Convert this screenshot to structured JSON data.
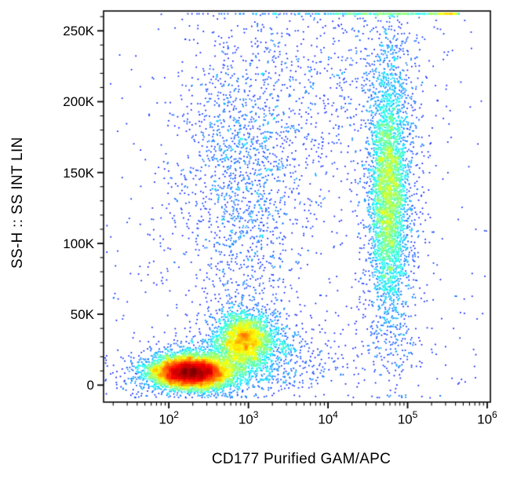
{
  "chart_data": {
    "type": "scatter",
    "subtype": "flow-cytometry-density-dot-plot",
    "title": "",
    "xlabel": "CD177 Purified GAM/APC",
    "ylabel": "SS-H :: SS INT LIN",
    "x_scale": "log10",
    "y_scale": "linear",
    "x_log_range": [
      1.18,
      6.04
    ],
    "y_range": [
      -12000,
      264000
    ],
    "saturation_y": 262000,
    "x_ticks": [
      2,
      3,
      4,
      5,
      6
    ],
    "y_ticks": [
      {
        "value": 0,
        "label": "0"
      },
      {
        "value": 50000,
        "label": "50K"
      },
      {
        "value": 100000,
        "label": "100K"
      },
      {
        "value": 150000,
        "label": "150K"
      },
      {
        "value": 200000,
        "label": "200K"
      },
      {
        "value": 250000,
        "label": "250K"
      }
    ],
    "y_minor_step": 10000,
    "grid": false,
    "legend": false,
    "colormap": "jet",
    "point_color_low_density": "#0020ff",
    "point_color_high_density": "#ff0000",
    "seed": 1234,
    "populations": [
      {
        "name": "low-ss-main-core",
        "dist": "gauss",
        "cx_log": 2.28,
        "sx_log": 0.22,
        "cy": 9000,
        "sy": 5000,
        "n": 6500
      },
      {
        "name": "low-ss-main-halo",
        "dist": "gauss",
        "cx_log": 2.33,
        "sx_log": 0.38,
        "cy": 10000,
        "sy": 8500,
        "n": 2200
      },
      {
        "name": "low-ss-secondary-blob",
        "dist": "gauss",
        "cx_log": 2.95,
        "sx_log": 0.17,
        "cy": 32000,
        "sy": 9000,
        "n": 2200
      },
      {
        "name": "low-ss-secondary-halo",
        "dist": "gauss",
        "cx_log": 2.95,
        "sx_log": 0.3,
        "cy": 33000,
        "sy": 14000,
        "n": 650
      },
      {
        "name": "low-ss-bridge",
        "dist": "gauss",
        "cx_log": 3.3,
        "sx_log": 0.45,
        "cy": 20000,
        "sy": 12000,
        "n": 480
      },
      {
        "name": "mid-left-diffuse-cloud",
        "dist": "gauss",
        "cx_log": 2.9,
        "sx_log": 0.42,
        "cy": 150000,
        "sy": 55000,
        "n": 1700
      },
      {
        "name": "upper-mid-sparse",
        "dist": "gauss",
        "cx_log": 4.15,
        "sx_log": 0.5,
        "cy": 215000,
        "sy": 45000,
        "n": 480
      },
      {
        "name": "cd177-pos-core",
        "dist": "gauss",
        "cx_log": 4.76,
        "sx_log": 0.11,
        "cy": 135000,
        "sy": 40000,
        "n": 3200
      },
      {
        "name": "cd177-pos-halo",
        "dist": "gauss",
        "cx_log": 4.78,
        "sx_log": 0.2,
        "cy": 150000,
        "sy": 62000,
        "n": 1300
      },
      {
        "name": "cd177-pos-low-ss",
        "dist": "gauss",
        "cx_log": 4.75,
        "sx_log": 0.3,
        "cy": 30000,
        "sy": 18000,
        "n": 140
      },
      {
        "name": "saturated-top-edge",
        "dist": "top_edge",
        "x_log_min": 4.1,
        "x_log_max": 5.65,
        "n": 130
      },
      {
        "name": "saturated-top-edge-dense",
        "dist": "top_edge",
        "x_log_min": 5.28,
        "x_log_max": 5.62,
        "n": 95
      },
      {
        "name": "background",
        "dist": "uniform",
        "x_log_min": 1.22,
        "x_log_max": 6.0,
        "y_min": -5000,
        "y_max": 258000,
        "n": 460
      }
    ]
  }
}
